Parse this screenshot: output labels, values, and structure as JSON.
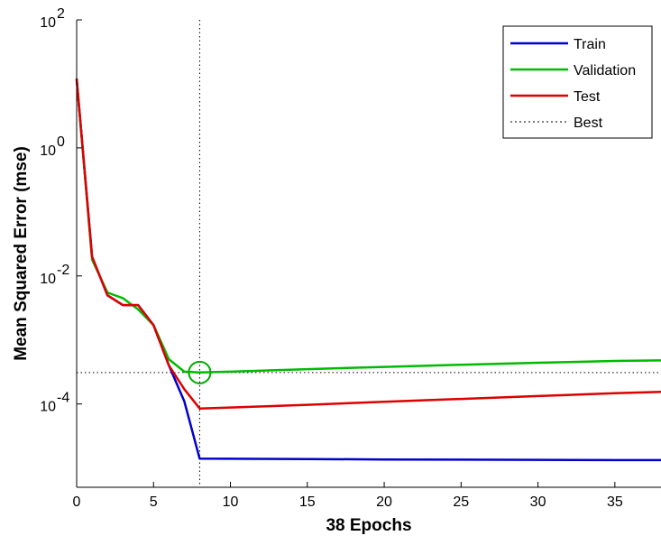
{
  "chart_data": {
    "type": "line",
    "xlabel": "38 Epochs",
    "ylabel": "Mean Squared Error  (mse)",
    "xlim": [
      0,
      38
    ],
    "ylim": [
      5e-06,
      100
    ],
    "yscale": "log",
    "grid": false,
    "legend_position": "top-right",
    "x_ticks": [
      0,
      5,
      10,
      15,
      20,
      25,
      30,
      35
    ],
    "x_tick_labels": [
      "0",
      "5",
      "10",
      "15",
      "20",
      "25",
      "30",
      "35"
    ],
    "y_ticks": [
      0.0001,
      0.01,
      1,
      100
    ],
    "y_tick_labels": [
      {
        "base": "10",
        "exp": "-4"
      },
      {
        "base": "10",
        "exp": "-2"
      },
      {
        "base": "10",
        "exp": "0"
      },
      {
        "base": "10",
        "exp": "2"
      }
    ],
    "series": [
      {
        "name": "Train",
        "color": "#0000cc",
        "x": [
          0,
          1,
          2,
          3,
          4,
          5,
          6,
          7,
          8,
          15,
          20,
          25,
          30,
          35,
          38
        ],
        "y": [
          12,
          0.02,
          0.005,
          0.0035,
          0.0035,
          0.0017,
          0.0004,
          0.00011,
          1.4e-05,
          1.38e-05,
          1.36e-05,
          1.35e-05,
          1.34e-05,
          1.33e-05,
          1.33e-05
        ]
      },
      {
        "name": "Validation",
        "color": "#00bb00",
        "x": [
          0,
          1,
          2,
          3,
          4,
          5,
          6,
          7,
          8,
          10,
          15,
          20,
          25,
          30,
          35,
          38
        ],
        "y": [
          12,
          0.018,
          0.0055,
          0.0045,
          0.003,
          0.0017,
          0.0005,
          0.00032,
          0.00031,
          0.00032,
          0.00035,
          0.00038,
          0.00041,
          0.00044,
          0.00047,
          0.00048
        ]
      },
      {
        "name": "Test",
        "color": "#dd0000",
        "x": [
          0,
          1,
          2,
          3,
          4,
          5,
          6,
          7,
          8,
          10,
          15,
          20,
          25,
          30,
          35,
          38
        ],
        "y": [
          12,
          0.02,
          0.005,
          0.0035,
          0.0035,
          0.0017,
          0.0004,
          0.00017,
          8.5e-05,
          8.8e-05,
          9.7e-05,
          0.000108,
          0.00012,
          0.000133,
          0.000147,
          0.000155
        ]
      }
    ],
    "best": {
      "name": "Best",
      "epoch": 8,
      "value": 0.00031,
      "color": "#00aa00"
    }
  }
}
